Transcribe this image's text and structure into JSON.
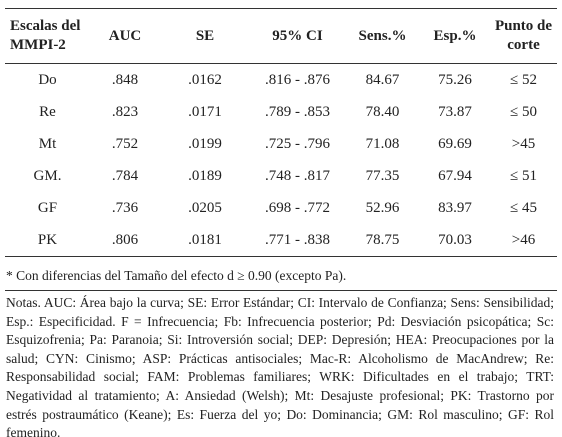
{
  "table": {
    "header": [
      "Escalas del MMPI-2",
      "AUC",
      "SE",
      "95% CI",
      "Sens.%",
      "Esp.%",
      "Punto de corte"
    ],
    "rows": [
      [
        "Do",
        ".848",
        ".0162",
        ".816 - .876",
        "84.67",
        "75.26",
        "≤ 52"
      ],
      [
        "Re",
        ".823",
        ".0171",
        ".789 - .853",
        "78.40",
        "73.87",
        "≤ 50"
      ],
      [
        "Mt",
        ".752",
        ".0199",
        ".725 - .796",
        "71.08",
        "69.69",
        ">45"
      ],
      [
        "GM.",
        ".784",
        ".0189",
        ".748 - .817",
        "77.35",
        "67.94",
        "≤ 51"
      ],
      [
        "GF",
        ".736",
        ".0205",
        ".698 - .772",
        "52.96",
        "83.97",
        "≤ 45"
      ],
      [
        "PK",
        ".806",
        ".0181",
        ".771 - .838",
        "78.75",
        "70.03",
        ">46"
      ]
    ]
  },
  "footnote": "* Con diferencias del Tamaño del efecto d ≥ 0.90 (excepto Pa).",
  "notes": "Notas. AUC: Área bajo la curva; SE: Error Estándar; CI: Intervalo de Confianza; Sens: Sensibilidad; Esp.: Especificidad. F = Infrecuencia; Fb: Infrecuencia posterior; Pd: Desviación psicopática; Sc: Esquizofrenia; Pa: Paranoia; Si: Introversión social; DEP: Depresión; HEA: Preocupaciones por la salud; CYN: Cinismo; ASP: Prácticas antisociales; Mac-R: Alcoholismo de MacAndrew; Re: Responsabilidad social; FAM: Problemas familiares; WRK: Dificultades en el trabajo; TRT: Negatividad al tratamiento; A: Ansiedad (Welsh); Mt: Desajuste profesional; PK: Trastorno por estrés postraumático (Keane); Es: Fuerza del yo; Do: Dominancia; GM: Rol masculino; GF: Rol femenino."
}
